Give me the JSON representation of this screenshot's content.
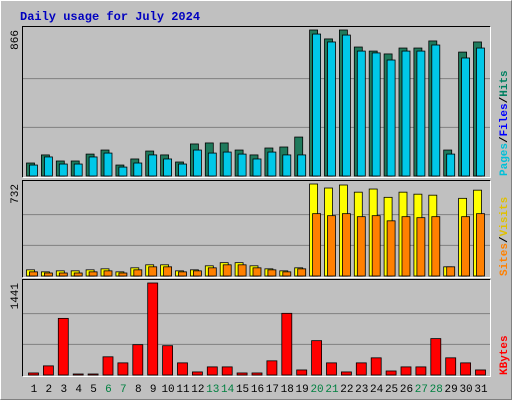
{
  "chart_data": {
    "type": "bar",
    "title": "Daily usage for July 2024",
    "categories": [
      "1",
      "2",
      "3",
      "4",
      "5",
      "6",
      "7",
      "8",
      "9",
      "10",
      "11",
      "12",
      "13",
      "14",
      "15",
      "16",
      "17",
      "18",
      "19",
      "20",
      "21",
      "22",
      "23",
      "24",
      "25",
      "26",
      "27",
      "28",
      "29",
      "30",
      "31"
    ],
    "category_colors": [
      "#000000",
      "#000000",
      "#000000",
      "#000000",
      "#000000",
      "#008040",
      "#008040",
      "#000000",
      "#000000",
      "#000000",
      "#000000",
      "#000000",
      "#008040",
      "#008040",
      "#000000",
      "#000000",
      "#000000",
      "#000000",
      "#000000",
      "#008040",
      "#008040",
      "#000000",
      "#000000",
      "#000000",
      "#000000",
      "#000000",
      "#008040",
      "#008040",
      "#000000",
      "#000000",
      "#000000"
    ],
    "separator": "/",
    "panels": [
      {
        "ylim": [
          0,
          866
        ],
        "yticks": [
          866
        ],
        "legend_order": [
          "Pages",
          "Files",
          "Hits"
        ],
        "legend_colors": {
          "Pages": "#00c0d8",
          "Files": "#0000ff",
          "Hits": "#008060"
        },
        "series": [
          {
            "name": "Hits",
            "color": "#1f7a5c",
            "values": [
              77,
              125,
              89,
              89,
              130,
              154,
              65,
              101,
              148,
              125,
              83,
              190,
              196,
              196,
              154,
              125,
              166,
              172,
              231,
              866,
              813,
              866,
              765,
              741,
              724,
              759,
              759,
              801,
              154,
              735,
              795
            ]
          },
          {
            "name": "Pages",
            "color": "#00c8e8",
            "values": [
              65,
              113,
              71,
              71,
              113,
              136,
              53,
              77,
              125,
              101,
              71,
              154,
              136,
              142,
              130,
              101,
              142,
              125,
              125,
              842,
              795,
              836,
              741,
              730,
              688,
              741,
              741,
              777,
              130,
              700,
              759
            ]
          }
        ]
      },
      {
        "ylim": [
          0,
          732
        ],
        "yticks": [
          732
        ],
        "legend_order": [
          "Sites",
          "Visits"
        ],
        "legend_colors": {
          "Sites": "#ff8000",
          "Visits": "#e0c000"
        },
        "series": [
          {
            "name": "Visits",
            "color": "#ffff00",
            "values": [
              49,
              33,
              41,
              41,
              49,
              57,
              33,
              65,
              89,
              89,
              41,
              49,
              81,
              106,
              106,
              81,
              57,
              41,
              65,
              732,
              700,
              724,
              667,
              692,
              626,
              667,
              651,
              643,
              73,
              618,
              683
            ]
          },
          {
            "name": "Sites",
            "color": "#ff8000",
            "values": [
              33,
              24,
              24,
              24,
              33,
              41,
              24,
              49,
              73,
              73,
              33,
              41,
              65,
              89,
              89,
              65,
              49,
              33,
              57,
              496,
              480,
              496,
              472,
              480,
              439,
              472,
              464,
              472,
              73,
              472,
              496
            ]
          }
        ]
      },
      {
        "ylim": [
          0,
          1441
        ],
        "yticks": [
          1441
        ],
        "legend_order": [
          "KBytes"
        ],
        "legend_colors": {
          "KBytes": "#ff0000"
        },
        "series": [
          {
            "name": "KBytes",
            "color": "#ff0000",
            "values": [
              32,
              143,
              887,
              16,
              16,
              285,
              190,
              475,
              1441,
              459,
              190,
              48,
              127,
              127,
              32,
              32,
              222,
              966,
              79,
              538,
              190,
              48,
              190,
              269,
              63,
              127,
              127,
              570,
              269,
              190,
              79
            ]
          }
        ]
      }
    ]
  }
}
